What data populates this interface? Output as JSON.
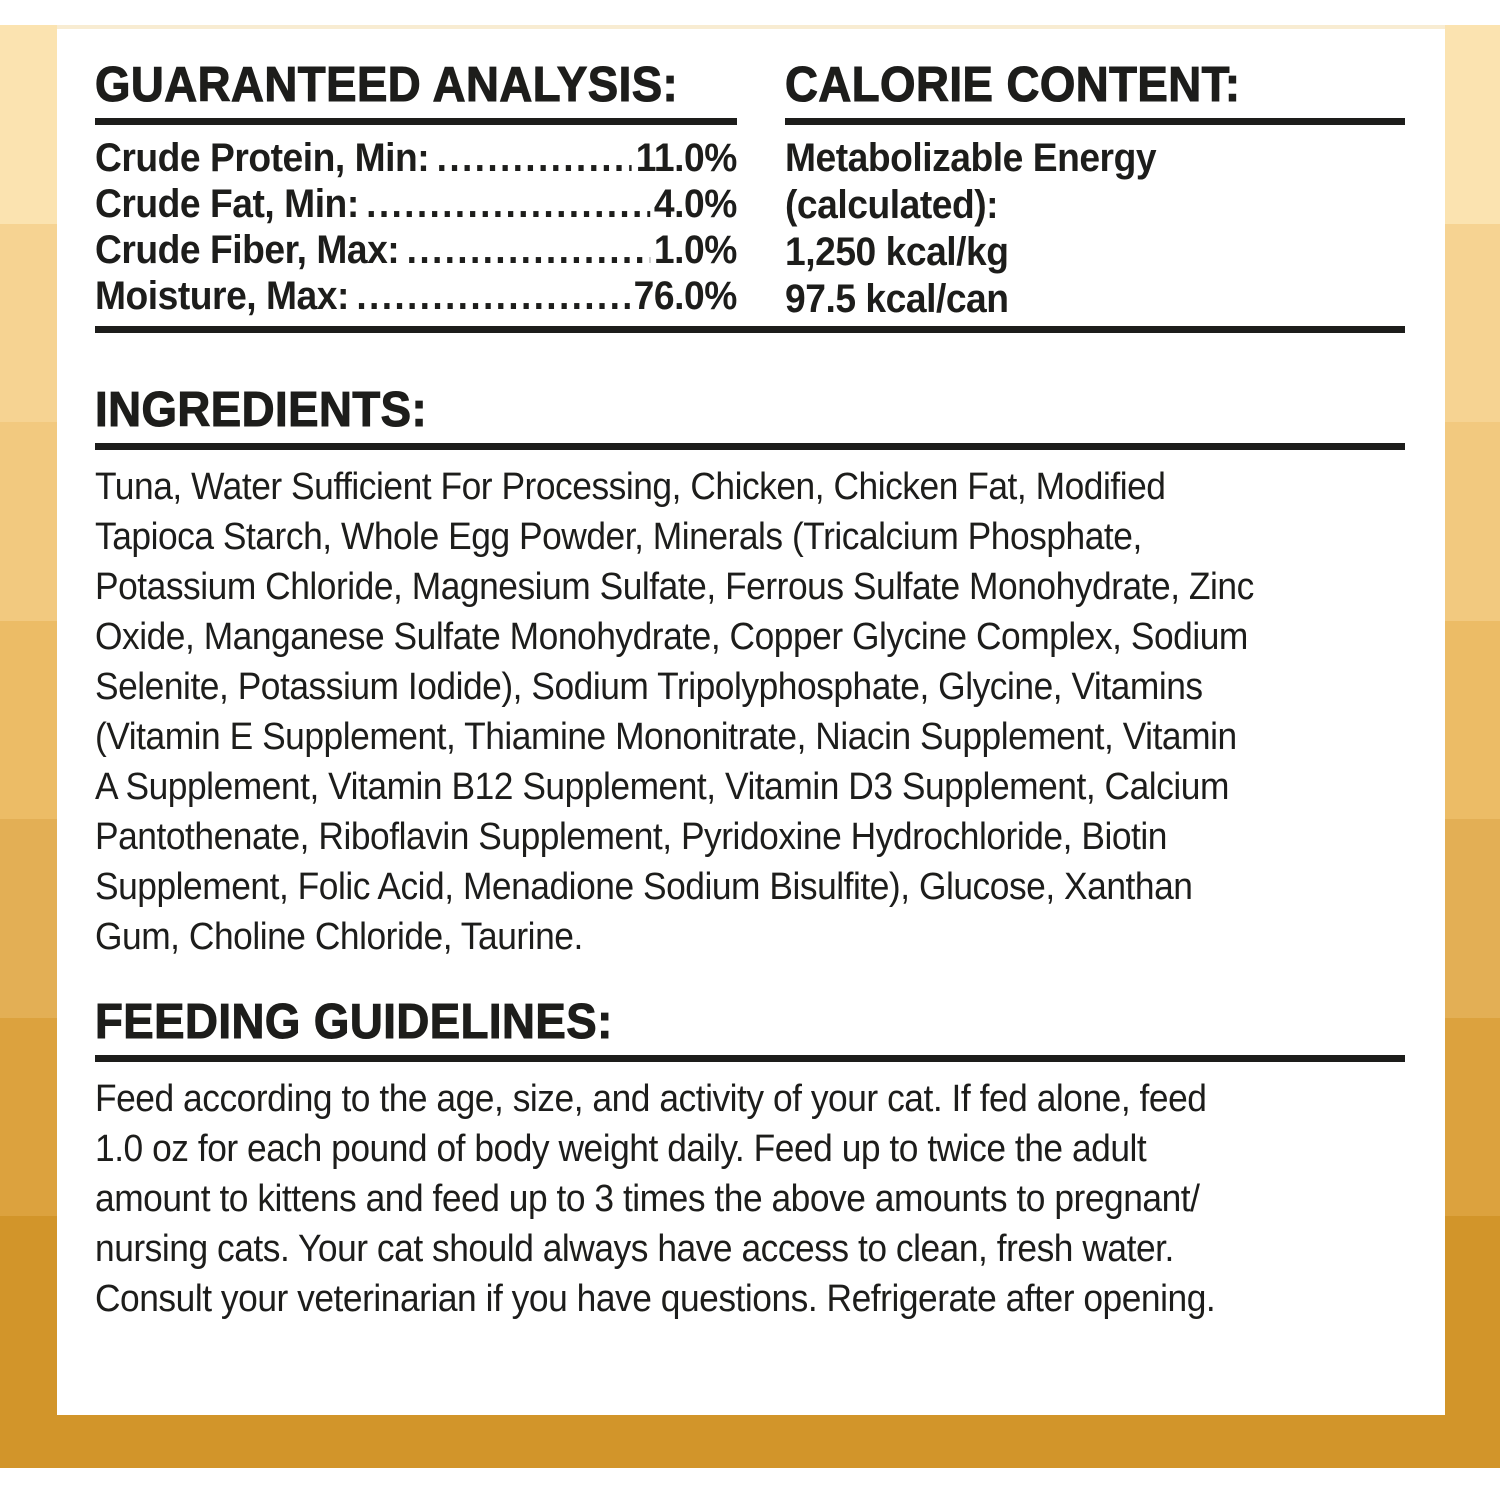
{
  "label": {
    "guaranteed_analysis": {
      "heading": "GUARANTEED ANALYSIS:",
      "rows": [
        {
          "name": "Crude Protein, Min:",
          "value": "11.0%"
        },
        {
          "name": "Crude Fat, Min:",
          "value": "4.0%"
        },
        {
          "name": "Crude Fiber, Max:",
          "value": "1.0%"
        },
        {
          "name": "Moisture, Max:",
          "value": "76.0%"
        }
      ]
    },
    "calorie_content": {
      "heading": "CALORIE CONTENT:",
      "lines": [
        "Metabolizable Energy",
        "(calculated):",
        "1,250 kcal/kg",
        "97.5 kcal/can"
      ]
    },
    "ingredients": {
      "heading": "INGREDIENTS:",
      "lines": [
        "Tuna, Water Sufficient For Processing, Chicken, Chicken Fat, Modified",
        "Tapioca Starch, Whole Egg Powder, Minerals (Tricalcium Phosphate,",
        "Potassium Chloride, Magnesium Sulfate, Ferrous Sulfate Monohydrate, Zinc",
        "Oxide, Manganese Sulfate Monohydrate, Copper Glycine Complex, Sodium",
        "Selenite, Potassium Iodide), Sodium Tripolyphosphate, Glycine, Vitamins",
        "(Vitamin E Supplement, Thiamine Mononitrate, Niacin Supplement, Vitamin",
        "A Supplement, Vitamin B12 Supplement, Vitamin D3 Supplement, Calcium",
        "Pantothenate, Riboflavin Supplement, Pyridoxine Hydrochloride, Biotin",
        "Supplement, Folic Acid, Menadione Sodium Bisulfite), Glucose, Xanthan",
        "Gum, Choline Chloride, Taurine."
      ]
    },
    "feeding_guidelines": {
      "heading": "FEEDING GUIDELINES:",
      "lines": [
        "Feed according to the age, size, and activity of your cat. If fed alone, feed",
        "1.0 oz for each pound of body weight daily. Feed up to twice the adult",
        "amount to kittens and feed up to 3 times the above amounts to pregnant/",
        "nursing cats. Your cat should always have access to clean, fresh water.",
        "Consult your veterinarian if you have questions. Refrigerate after opening."
      ]
    }
  },
  "decor": {
    "side_bands": [
      "#fbe3b0",
      "#f6d392",
      "#f2c97f",
      "#ecbc66",
      "#e3af55",
      "#dca23e",
      "#d2952a"
    ],
    "bottom_bar_color": "#d2952a",
    "rule_color": "#1d1d1b",
    "text_color": "#1d1d1b",
    "label_background": "#ffffff"
  }
}
